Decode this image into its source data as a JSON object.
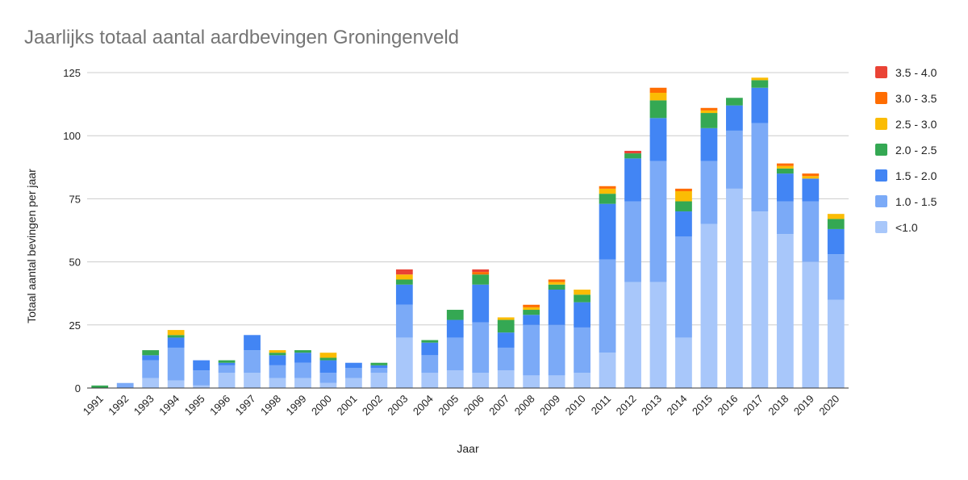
{
  "chart_data": {
    "type": "bar",
    "stacked": true,
    "title": "Jaarlijks totaal aantal aardbevingen Groningenveld",
    "xlabel": "Jaar",
    "ylabel": "Totaal aantal bevingen per jaar",
    "ylim": [
      0,
      125
    ],
    "yticks": [
      "0",
      "25",
      "50",
      "75",
      "100",
      "125"
    ],
    "grid": true,
    "legend_position": "right",
    "categories": [
      "1991",
      "1992",
      "1993",
      "1994",
      "1995",
      "1996",
      "1997",
      "1998",
      "1999",
      "2000",
      "2001",
      "2002",
      "2003",
      "2004",
      "2005",
      "2006",
      "2007",
      "2008",
      "2009",
      "2010",
      "2011",
      "2012",
      "2013",
      "2014",
      "2015",
      "2016",
      "2017",
      "2018",
      "2019",
      "2020"
    ],
    "series": [
      {
        "name": "<1.0",
        "color": "#a8c7fa",
        "values": [
          0,
          0,
          4,
          3,
          1,
          6,
          6,
          4,
          4,
          2,
          4,
          6,
          20,
          6,
          7,
          6,
          7,
          5,
          5,
          6,
          14,
          42,
          42,
          20,
          65,
          79,
          70,
          61,
          50,
          35
        ]
      },
      {
        "name": "1.0 - 1.5",
        "color": "#7baaf7",
        "values": [
          0,
          2,
          7,
          13,
          6,
          3,
          9,
          5,
          6,
          4,
          4,
          2,
          13,
          7,
          13,
          20,
          9,
          20,
          20,
          18,
          37,
          32,
          48,
          40,
          25,
          23,
          35,
          13,
          24,
          18
        ]
      },
      {
        "name": "1.5 - 2.0",
        "color": "#4285f4",
        "values": [
          0,
          0,
          2,
          4,
          4,
          1,
          6,
          4,
          4,
          5,
          2,
          1,
          8,
          5,
          7,
          15,
          6,
          4,
          14,
          10,
          22,
          17,
          17,
          10,
          13,
          10,
          14,
          11,
          9,
          10
        ]
      },
      {
        "name": "2.0 - 2.5",
        "color": "#34a853",
        "values": [
          1,
          0,
          2,
          1,
          0,
          1,
          0,
          1,
          1,
          1,
          0,
          1,
          2,
          1,
          4,
          4,
          5,
          2,
          2,
          3,
          4,
          2,
          7,
          4,
          6,
          3,
          3,
          2,
          0,
          4
        ]
      },
      {
        "name": "2.5 - 3.0",
        "color": "#fbbc04",
        "values": [
          0,
          0,
          0,
          2,
          0,
          0,
          0,
          1,
          0,
          2,
          0,
          0,
          2,
          0,
          0,
          0,
          1,
          1,
          1,
          2,
          2,
          0,
          3,
          4,
          1,
          0,
          1,
          1,
          1,
          2
        ]
      },
      {
        "name": "3.0 - 3.5",
        "color": "#ff6d01",
        "values": [
          0,
          0,
          0,
          0,
          0,
          0,
          0,
          0,
          0,
          0,
          0,
          0,
          0,
          0,
          0,
          1,
          0,
          1,
          1,
          0,
          1,
          0,
          2,
          1,
          1,
          0,
          0,
          1,
          1,
          0
        ]
      },
      {
        "name": "3.5 - 4.0",
        "color": "#ea4335",
        "values": [
          0,
          0,
          0,
          0,
          0,
          0,
          0,
          0,
          0,
          0,
          0,
          0,
          2,
          0,
          0,
          1,
          0,
          0,
          0,
          0,
          0,
          1,
          0,
          0,
          0,
          0,
          0,
          0,
          0,
          0
        ]
      }
    ],
    "legend_order": [
      "3.5 - 4.0",
      "3.0 - 3.5",
      "2.5 - 3.0",
      "2.0 - 2.5",
      "1.5 - 2.0",
      "1.0 - 1.5",
      "<1.0"
    ]
  }
}
